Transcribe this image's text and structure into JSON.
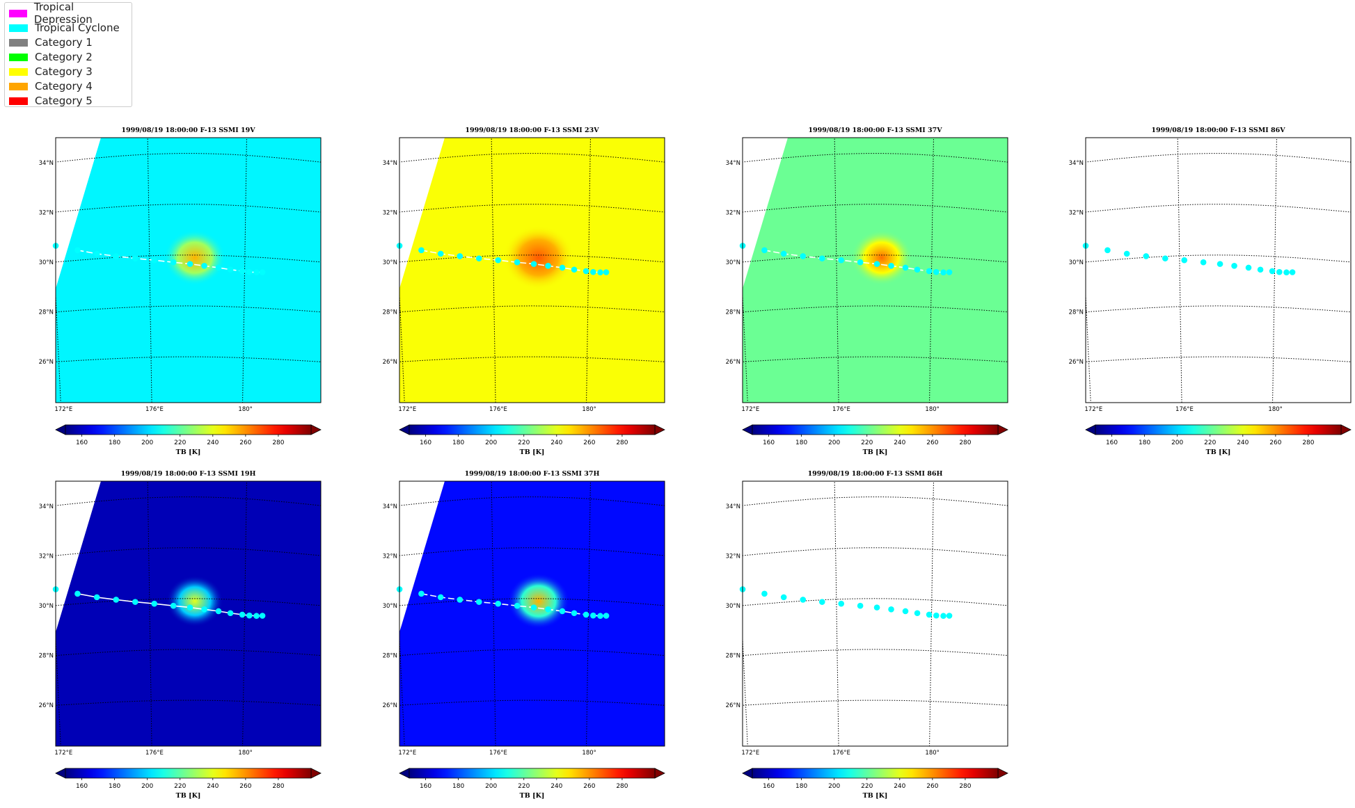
{
  "legend": {
    "items": [
      {
        "label": "Tropical Depression",
        "color": "#ff00ff"
      },
      {
        "label": "Tropical Cyclone",
        "color": "#00ffff"
      },
      {
        "label": "Category 1",
        "color": "#808080"
      },
      {
        "label": "Category 2",
        "color": "#00ff00"
      },
      {
        "label": "Category 3",
        "color": "#ffff00"
      },
      {
        "label": "Category 4",
        "color": "#ffa500"
      },
      {
        "label": "Category 5",
        "color": "#ff0000"
      }
    ]
  },
  "map": {
    "lon_ticks": [
      "172°E",
      "176°E",
      "180°"
    ],
    "lat_ticks": [
      "34°N",
      "32°N",
      "30°N",
      "28°N",
      "26°N"
    ],
    "colorbar": {
      "label": "TB [K]",
      "ticks": [
        "160",
        "180",
        "200",
        "220",
        "240",
        "260",
        "280"
      ],
      "range": [
        150,
        300
      ],
      "colormap": "jet",
      "extend": "both"
    }
  },
  "track": {
    "color": "#00ffff",
    "points": [
      {
        "lon": 172.1,
        "lat": 30.65
      },
      {
        "lon": 173.0,
        "lat": 30.4
      },
      {
        "lon": 173.8,
        "lat": 30.2
      },
      {
        "lon": 174.6,
        "lat": 30.05
      },
      {
        "lon": 175.4,
        "lat": 29.92
      },
      {
        "lon": 176.2,
        "lat": 29.82
      },
      {
        "lon": 177.0,
        "lat": 29.72
      },
      {
        "lon": 177.7,
        "lat": 29.65
      },
      {
        "lon": 178.3,
        "lat": 29.58
      },
      {
        "lon": 178.9,
        "lat": 29.52
      },
      {
        "lon": 179.4,
        "lat": 29.46
      },
      {
        "lon": 179.9,
        "lat": 29.42
      },
      {
        "lon": 180.2,
        "lat": 29.4
      },
      {
        "lon": 180.5,
        "lat": 29.4
      },
      {
        "lon": 180.75,
        "lat": 29.42
      }
    ]
  },
  "panels": [
    {
      "title": "1999/08/19 18:00:00  F-13 SSMI 19V",
      "has_data": true,
      "background_tb": 205,
      "eye_tb": 255,
      "eye_radius": 1.3,
      "track_line": "dashed"
    },
    {
      "title": "1999/08/19 18:00:00  F-13 SSMI 23V",
      "has_data": true,
      "background_tb": 243,
      "eye_tb": 268,
      "eye_radius": 1.5,
      "track_line": "dashed"
    },
    {
      "title": "1999/08/19 18:00:00  F-13 SSMI 37V",
      "has_data": true,
      "background_tb": 222,
      "eye_tb": 265,
      "eye_radius": 1.3,
      "track_line": "dashed"
    },
    {
      "title": "1999/08/19 18:00:00  F-13 SSMI 86V",
      "has_data": false,
      "track_line": "none"
    },
    {
      "title": "1999/08/19 18:00:00  F-13 SSMI 19H",
      "has_data": true,
      "background_tb": 158,
      "eye_tb": 240,
      "eye_radius": 1.2,
      "track_line": "solid"
    },
    {
      "title": "1999/08/19 18:00:00  F-13 SSMI 37H",
      "has_data": true,
      "background_tb": 170,
      "eye_tb": 255,
      "eye_radius": 1.3,
      "track_line": "dashed"
    },
    {
      "title": "1999/08/19 18:00:00  F-13 SSMI 86H",
      "has_data": false,
      "track_line": "none"
    }
  ]
}
